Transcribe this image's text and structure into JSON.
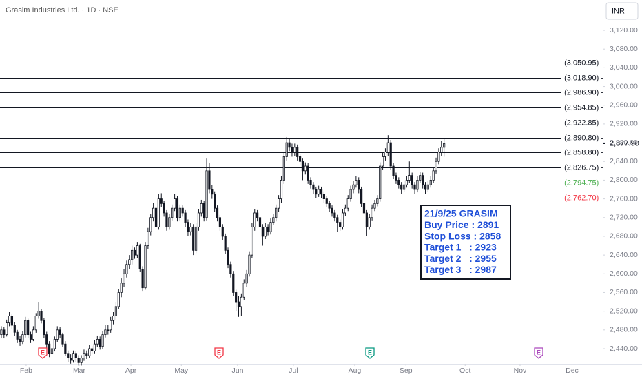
{
  "chart_data": {
    "type": "candlestick",
    "title": "Grasim Industries Ltd. · 1D · NSE",
    "currency": "INR",
    "up_color": "#ffffff",
    "down_color": "#131722",
    "xlim": [
      0,
      226
    ],
    "xticks": [
      {
        "value": 9.8,
        "label": "Feb"
      },
      {
        "value": 29.7,
        "label": "Mar"
      },
      {
        "value": 49.1,
        "label": "Apr"
      },
      {
        "value": 68,
        "label": "May"
      },
      {
        "value": 89.1,
        "label": "Jun"
      },
      {
        "value": 110,
        "label": "Jul"
      },
      {
        "value": 133,
        "label": "Aug"
      },
      {
        "value": 152.2,
        "label": "Sep"
      },
      {
        "value": 174.4,
        "label": "Oct"
      },
      {
        "value": 195,
        "label": "Nov"
      },
      {
        "value": 214.5,
        "label": "Dec"
      }
    ],
    "ylim": [
      2407.6,
      3184.8
    ],
    "yticks": [
      {
        "value": 2440,
        "label": "2,440.00"
      },
      {
        "value": 2480,
        "label": "2,480.00"
      },
      {
        "value": 2520,
        "label": "2,520.00"
      },
      {
        "value": 2560,
        "label": "2,560.00"
      },
      {
        "value": 2600,
        "label": "2,600.00"
      },
      {
        "value": 2640,
        "label": "2,640.00"
      },
      {
        "value": 2680,
        "label": "2,680.00"
      },
      {
        "value": 2720,
        "label": "2,720.00"
      },
      {
        "value": 2760,
        "label": "2,760.00"
      },
      {
        "value": 2800,
        "label": "2,800.00"
      },
      {
        "value": 2840,
        "label": "2,840.00"
      },
      {
        "value": 2880,
        "label": "2,880.00"
      },
      {
        "value": 2920,
        "label": "2,920.00"
      },
      {
        "value": 2960,
        "label": "2,960.00"
      },
      {
        "value": 3000,
        "label": "3,000.00"
      },
      {
        "value": 3040,
        "label": "3,040.00"
      },
      {
        "value": 3080,
        "label": "3,080.00"
      },
      {
        "value": 3120,
        "label": "3,120.00"
      }
    ],
    "last_price": {
      "value": 2877.9,
      "label": "2,877.90"
    },
    "levels": [
      {
        "value": 3050.95,
        "label": "(3,050.95) -",
        "color": "#131722"
      },
      {
        "value": 3018.9,
        "label": "(3,018.90) -",
        "color": "#131722"
      },
      {
        "value": 2986.9,
        "label": "(2,986.90) -",
        "color": "#131722"
      },
      {
        "value": 2954.85,
        "label": "(2,954.85) -",
        "color": "#131722"
      },
      {
        "value": 2922.85,
        "label": "(2,922.85) -",
        "color": "#131722"
      },
      {
        "value": 2890.8,
        "label": "(2,890.80) -",
        "color": "#131722"
      },
      {
        "value": 2858.8,
        "label": "(2,858.80) -",
        "color": "#131722"
      },
      {
        "value": 2826.75,
        "label": "(2,826.75) -",
        "color": "#131722"
      },
      {
        "value": 2794.75,
        "label": "(2,794.75) -",
        "color": "#4caf50"
      },
      {
        "value": 2762.7,
        "label": "(2,762.70) -",
        "color": "#f23645"
      }
    ],
    "info_box": [
      "21/9/25 GRASIM",
      "Buy Price : 2891",
      "Stop Loss : 2858",
      "Target 1   : 2923",
      "Target 2   : 2955",
      "Target 3   : 2987"
    ],
    "events": [
      {
        "label": "E",
        "color": "#f23645"
      },
      {
        "label": "E",
        "color": "#f23645"
      },
      {
        "label": "E",
        "color": "#089981"
      },
      {
        "label": "E",
        "color": "#ab47bc"
      }
    ],
    "ohlc": [
      [
        2470,
        2488,
        2462,
        2480
      ],
      [
        2480,
        2486,
        2462,
        2470
      ],
      [
        2470,
        2502,
        2466,
        2495
      ],
      [
        2495,
        2518,
        2488,
        2510
      ],
      [
        2510,
        2514,
        2482,
        2490
      ],
      [
        2490,
        2496,
        2468,
        2475
      ],
      [
        2475,
        2480,
        2452,
        2460
      ],
      [
        2460,
        2468,
        2446,
        2455
      ],
      [
        2455,
        2478,
        2450,
        2470
      ],
      [
        2470,
        2508,
        2464,
        2500
      ],
      [
        2500,
        2504,
        2462,
        2470
      ],
      [
        2470,
        2476,
        2452,
        2460
      ],
      [
        2460,
        2488,
        2456,
        2480
      ],
      [
        2480,
        2516,
        2474,
        2510
      ],
      [
        2510,
        2540,
        2504,
        2520
      ],
      [
        2520,
        2524,
        2494,
        2500
      ],
      [
        2500,
        2506,
        2462,
        2470
      ],
      [
        2470,
        2476,
        2442,
        2450
      ],
      [
        2450,
        2456,
        2422,
        2430
      ],
      [
        2430,
        2448,
        2424,
        2440
      ],
      [
        2440,
        2466,
        2434,
        2460
      ],
      [
        2460,
        2488,
        2454,
        2480
      ],
      [
        2480,
        2486,
        2462,
        2470
      ],
      [
        2470,
        2474,
        2444,
        2450
      ],
      [
        2450,
        2456,
        2424,
        2430
      ],
      [
        2430,
        2436,
        2412,
        2420
      ],
      [
        2420,
        2428,
        2408,
        2415
      ],
      [
        2415,
        2436,
        2410,
        2430
      ],
      [
        2430,
        2434,
        2412,
        2420
      ],
      [
        2420,
        2426,
        2404,
        2410
      ],
      [
        2410,
        2426,
        2404,
        2420
      ],
      [
        2420,
        2438,
        2414,
        2430
      ],
      [
        2430,
        2436,
        2418,
        2425
      ],
      [
        2425,
        2448,
        2420,
        2440
      ],
      [
        2440,
        2446,
        2428,
        2435
      ],
      [
        2435,
        2458,
        2430,
        2450
      ],
      [
        2450,
        2468,
        2444,
        2460
      ],
      [
        2460,
        2466,
        2438,
        2445
      ],
      [
        2445,
        2478,
        2440,
        2470
      ],
      [
        2470,
        2490,
        2464,
        2480
      ],
      [
        2480,
        2490,
        2470,
        2480
      ],
      [
        2480,
        2508,
        2474,
        2500
      ],
      [
        2500,
        2518,
        2492,
        2510
      ],
      [
        2510,
        2540,
        2502,
        2530
      ],
      [
        2530,
        2568,
        2524,
        2560
      ],
      [
        2560,
        2590,
        2550,
        2580
      ],
      [
        2580,
        2610,
        2572,
        2600
      ],
      [
        2600,
        2628,
        2592,
        2620
      ],
      [
        2620,
        2640,
        2610,
        2630
      ],
      [
        2630,
        2660,
        2620,
        2650
      ],
      [
        2650,
        2656,
        2632,
        2640
      ],
      [
        2640,
        2668,
        2634,
        2660
      ],
      [
        2660,
        2664,
        2604,
        2610
      ],
      [
        2610,
        2616,
        2562,
        2570
      ],
      [
        2570,
        2668,
        2566,
        2660
      ],
      [
        2660,
        2698,
        2652,
        2690
      ],
      [
        2690,
        2728,
        2682,
        2720
      ],
      [
        2720,
        2752,
        2712,
        2740
      ],
      [
        2740,
        2748,
        2692,
        2700
      ],
      [
        2700,
        2770,
        2694,
        2760
      ],
      [
        2760,
        2772,
        2742,
        2750
      ],
      [
        2750,
        2756,
        2722,
        2730
      ],
      [
        2730,
        2736,
        2692,
        2700
      ],
      [
        2700,
        2728,
        2694,
        2720
      ],
      [
        2720,
        2748,
        2714,
        2740
      ],
      [
        2740,
        2770,
        2734,
        2760
      ],
      [
        2760,
        2766,
        2712,
        2720
      ],
      [
        2720,
        2748,
        2714,
        2740
      ],
      [
        2740,
        2746,
        2722,
        2730
      ],
      [
        2730,
        2736,
        2700,
        2710
      ],
      [
        2710,
        2716,
        2680,
        2690
      ],
      [
        2690,
        2708,
        2682,
        2700
      ],
      [
        2700,
        2706,
        2640,
        2650
      ],
      [
        2650,
        2708,
        2644,
        2700
      ],
      [
        2700,
        2738,
        2692,
        2730
      ],
      [
        2730,
        2758,
        2722,
        2750
      ],
      [
        2750,
        2756,
        2712,
        2720
      ],
      [
        2720,
        2846,
        2714,
        2820
      ],
      [
        2820,
        2836,
        2772,
        2780
      ],
      [
        2780,
        2790,
        2760,
        2770
      ],
      [
        2770,
        2776,
        2732,
        2740
      ],
      [
        2740,
        2746,
        2712,
        2720
      ],
      [
        2720,
        2726,
        2692,
        2700
      ],
      [
        2700,
        2706,
        2672,
        2680
      ],
      [
        2680,
        2686,
        2642,
        2650
      ],
      [
        2650,
        2656,
        2612,
        2620
      ],
      [
        2620,
        2626,
        2592,
        2600
      ],
      [
        2600,
        2606,
        2552,
        2560
      ],
      [
        2560,
        2566,
        2520,
        2540
      ],
      [
        2540,
        2552,
        2508,
        2530
      ],
      [
        2530,
        2558,
        2510,
        2550
      ],
      [
        2550,
        2588,
        2544,
        2580
      ],
      [
        2580,
        2608,
        2572,
        2600
      ],
      [
        2600,
        2648,
        2594,
        2640
      ],
      [
        2640,
        2708,
        2634,
        2700
      ],
      [
        2700,
        2738,
        2692,
        2730
      ],
      [
        2730,
        2736,
        2712,
        2720
      ],
      [
        2720,
        2726,
        2692,
        2700
      ],
      [
        2700,
        2706,
        2660,
        2680
      ],
      [
        2680,
        2708,
        2674,
        2700
      ],
      [
        2700,
        2706,
        2682,
        2690
      ],
      [
        2690,
        2718,
        2684,
        2710
      ],
      [
        2710,
        2728,
        2704,
        2720
      ],
      [
        2720,
        2748,
        2712,
        2740
      ],
      [
        2740,
        2768,
        2732,
        2760
      ],
      [
        2760,
        2808,
        2752,
        2800
      ],
      [
        2800,
        2858,
        2792,
        2850
      ],
      [
        2850,
        2892,
        2842,
        2880
      ],
      [
        2880,
        2890,
        2862,
        2870
      ],
      [
        2870,
        2878,
        2850,
        2860
      ],
      [
        2860,
        2878,
        2852,
        2870
      ],
      [
        2870,
        2876,
        2842,
        2850
      ],
      [
        2850,
        2856,
        2832,
        2840
      ],
      [
        2840,
        2846,
        2800,
        2820
      ],
      [
        2820,
        2838,
        2812,
        2830
      ],
      [
        2830,
        2836,
        2792,
        2800
      ],
      [
        2800,
        2806,
        2782,
        2790
      ],
      [
        2790,
        2796,
        2770,
        2780
      ],
      [
        2780,
        2786,
        2762,
        2770
      ],
      [
        2770,
        2788,
        2764,
        2780
      ],
      [
        2780,
        2786,
        2762,
        2770
      ],
      [
        2770,
        2776,
        2752,
        2760
      ],
      [
        2760,
        2766,
        2742,
        2750
      ],
      [
        2750,
        2756,
        2732,
        2740
      ],
      [
        2740,
        2746,
        2722,
        2730
      ],
      [
        2730,
        2736,
        2712,
        2720
      ],
      [
        2720,
        2726,
        2690,
        2710
      ],
      [
        2710,
        2716,
        2692,
        2700
      ],
      [
        2700,
        2738,
        2694,
        2730
      ],
      [
        2730,
        2748,
        2724,
        2740
      ],
      [
        2740,
        2768,
        2734,
        2760
      ],
      [
        2760,
        2788,
        2754,
        2780
      ],
      [
        2780,
        2798,
        2772,
        2790
      ],
      [
        2790,
        2808,
        2784,
        2800
      ],
      [
        2800,
        2806,
        2772,
        2780
      ],
      [
        2780,
        2786,
        2742,
        2750
      ],
      [
        2750,
        2756,
        2722,
        2730
      ],
      [
        2730,
        2736,
        2680,
        2700
      ],
      [
        2700,
        2728,
        2694,
        2720
      ],
      [
        2720,
        2748,
        2714,
        2740
      ],
      [
        2740,
        2758,
        2734,
        2750
      ],
      [
        2750,
        2768,
        2744,
        2760
      ],
      [
        2760,
        2838,
        2754,
        2830
      ],
      [
        2830,
        2858,
        2822,
        2850
      ],
      [
        2850,
        2868,
        2842,
        2860
      ],
      [
        2860,
        2896,
        2852,
        2880
      ],
      [
        2880,
        2886,
        2822,
        2830
      ],
      [
        2830,
        2836,
        2802,
        2810
      ],
      [
        2810,
        2816,
        2792,
        2800
      ],
      [
        2800,
        2806,
        2782,
        2790
      ],
      [
        2790,
        2796,
        2770,
        2780
      ],
      [
        2780,
        2798,
        2774,
        2790
      ],
      [
        2790,
        2808,
        2784,
        2800
      ],
      [
        2800,
        2840,
        2794,
        2810
      ],
      [
        2810,
        2816,
        2782,
        2790
      ],
      [
        2790,
        2796,
        2770,
        2780
      ],
      [
        2780,
        2808,
        2774,
        2800
      ],
      [
        2800,
        2818,
        2794,
        2810
      ],
      [
        2810,
        2816,
        2782,
        2790
      ],
      [
        2790,
        2796,
        2770,
        2780
      ],
      [
        2780,
        2798,
        2774,
        2790
      ],
      [
        2790,
        2808,
        2784,
        2800
      ],
      [
        2800,
        2828,
        2794,
        2820
      ],
      [
        2820,
        2848,
        2814,
        2840
      ],
      [
        2840,
        2868,
        2834,
        2860
      ],
      [
        2860,
        2884,
        2852,
        2870
      ],
      [
        2870,
        2890,
        2850,
        2877.9
      ]
    ]
  }
}
